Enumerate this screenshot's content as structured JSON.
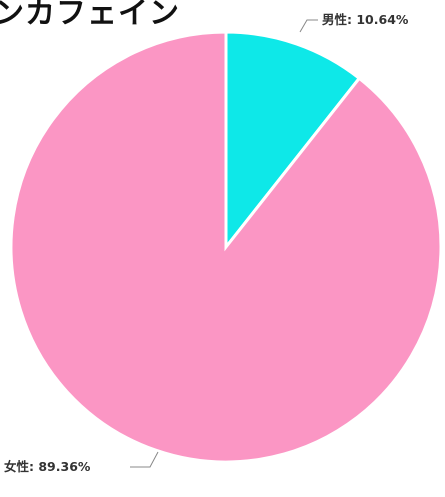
{
  "title": "ンカフェイン",
  "chart_data": {
    "type": "pie",
    "title": "ンカフェイン",
    "slices": [
      {
        "name": "男性",
        "value": 10.64,
        "label": "男性: 10.64%",
        "color": "#0ee8e8"
      },
      {
        "name": "女性",
        "value": 89.36,
        "label": "女性: 89.36%",
        "color": "#fb96c4"
      }
    ],
    "start_angle_deg": 0,
    "direction": "clockwise",
    "legend": "none"
  }
}
